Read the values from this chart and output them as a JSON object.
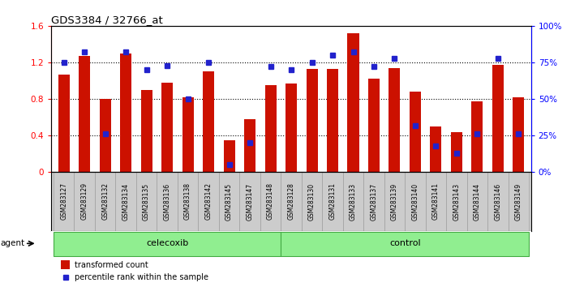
{
  "title": "GDS3384 / 32766_at",
  "samples": [
    "GSM283127",
    "GSM283129",
    "GSM283132",
    "GSM283134",
    "GSM283135",
    "GSM283136",
    "GSM283138",
    "GSM283142",
    "GSM283145",
    "GSM283147",
    "GSM283148",
    "GSM283128",
    "GSM283130",
    "GSM283131",
    "GSM283133",
    "GSM283137",
    "GSM283139",
    "GSM283140",
    "GSM283141",
    "GSM283143",
    "GSM283144",
    "GSM283146",
    "GSM283149"
  ],
  "transformed_count": [
    1.07,
    1.27,
    0.8,
    1.3,
    0.9,
    0.98,
    0.82,
    1.1,
    0.35,
    0.58,
    0.95,
    0.97,
    1.13,
    1.13,
    1.52,
    1.02,
    1.14,
    0.88,
    0.5,
    0.44,
    0.77,
    1.17,
    0.82
  ],
  "percentile_rank": [
    75,
    82,
    26,
    82,
    70,
    73,
    50,
    75,
    5,
    20,
    72,
    70,
    75,
    80,
    82,
    72,
    78,
    32,
    18,
    13,
    26,
    78,
    26
  ],
  "group_labels": [
    "celecoxib",
    "control"
  ],
  "group_counts": [
    11,
    12
  ],
  "bar_color": "#CC1100",
  "dot_color": "#2222CC",
  "tick_label_bg": "#CCCCCC",
  "group_fill": "#90EE90",
  "group_edge": "#44AA44",
  "ylim_left": [
    0,
    1.6
  ],
  "ylim_right": [
    0,
    100
  ],
  "yticks_left": [
    0,
    0.4,
    0.8,
    1.2,
    1.6
  ],
  "yticks_right": [
    0,
    25,
    50,
    75,
    100
  ],
  "yticklabels_left": [
    "0",
    "0.4",
    "0.8",
    "1.2",
    "1.6"
  ],
  "yticklabels_right": [
    "0%",
    "25%",
    "50%",
    "75%",
    "100%"
  ]
}
